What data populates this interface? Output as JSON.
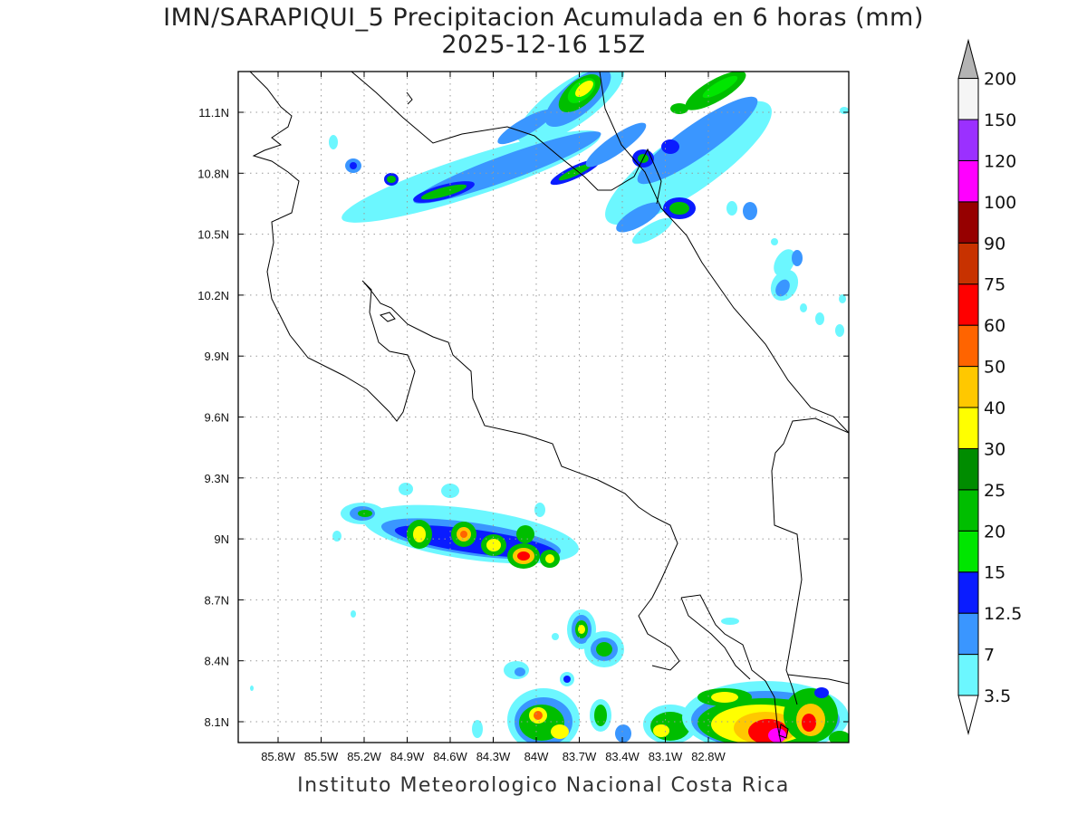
{
  "title": {
    "line1": "IMN/SARAPIQUI_5 Precipitacion Acumulada en 6 horas (mm)",
    "line2": "2025-12-16 15Z"
  },
  "credit": "Instituto Meteorologico Nacional Costa Rica",
  "map": {
    "lon_range": [
      -86.07,
      -83.08
    ],
    "lat_range": [
      7.99,
      11.31
    ],
    "x_ticks": [
      "85.8W",
      "85.5W",
      "85.2W",
      "84.9W",
      "84.6W",
      "84.3W",
      "84W",
      "83.7W",
      "83.4W",
      "83.1W",
      "82.8W"
    ],
    "y_ticks": [
      "11.1N",
      "10.8N",
      "10.5N",
      "10.2N",
      "9.9N",
      "9.6N",
      "9.3N",
      "9N",
      "8.7N",
      "8.4N",
      "8.1N"
    ]
  },
  "colorbar": {
    "levels": [
      "3.5",
      "7",
      "12.5",
      "15",
      "20",
      "25",
      "30",
      "40",
      "50",
      "60",
      "75",
      "90",
      "100",
      "120",
      "150",
      "200"
    ],
    "colors": [
      "#6cf7ff",
      "#3a96ff",
      "#0a1cff",
      "#00e600",
      "#00be00",
      "#008c00",
      "#ffff00",
      "#ffc800",
      "#ff6400",
      "#ff0000",
      "#c83200",
      "#960000",
      "#ff00ff",
      "#9b30ff",
      "#f5f5f5",
      "#b4b4b4"
    ]
  }
}
